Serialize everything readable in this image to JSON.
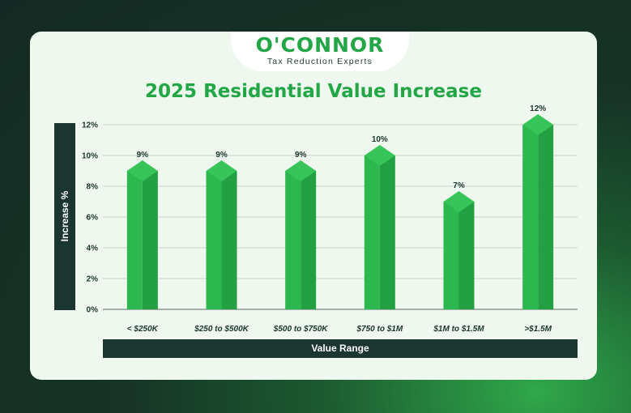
{
  "logo": {
    "name": "O'CONNOR",
    "tagline": "Tax Reduction Experts"
  },
  "colors": {
    "bar": "#2db84f",
    "bar_dark": "#23a043",
    "bar_top": "#37c55a",
    "axis_bg": "#1b3530",
    "title": "#22a646"
  },
  "chart_data": {
    "type": "bar",
    "title": "2025 Residential Value Increase",
    "xlabel": "Value Range",
    "ylabel": "Increase %",
    "categories": [
      "< $250K",
      "$250 to $500K",
      "$500 to $750K",
      "$750 to $1M",
      "$1M to $1.5M",
      ">$1.5M"
    ],
    "values": [
      9,
      9,
      9,
      10,
      7,
      12
    ],
    "value_labels": [
      "9%",
      "9%",
      "9%",
      "10%",
      "7%",
      "12%"
    ],
    "ylim": [
      0,
      12
    ],
    "yticks": [
      "0%",
      "2%",
      "4%",
      "6%",
      "8%",
      "10%",
      "12%"
    ],
    "grid": true,
    "legend": "none"
  }
}
